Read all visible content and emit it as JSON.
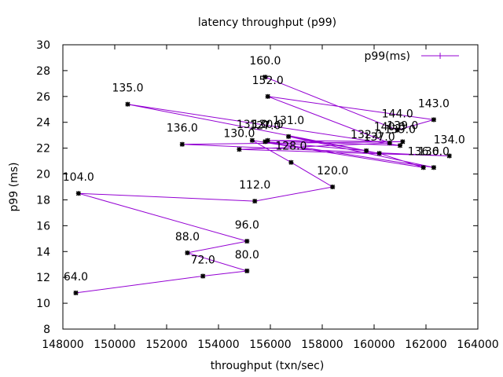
{
  "chart_data": {
    "type": "line",
    "title": "latency throughput (p99)",
    "xlabel": "throughput (txn/sec)",
    "ylabel": "p99 (ms)",
    "xlim": [
      148000,
      164000
    ],
    "ylim": [
      8,
      30
    ],
    "xticks": [
      148000,
      150000,
      152000,
      154000,
      156000,
      158000,
      160000,
      162000,
      164000
    ],
    "yticks": [
      8,
      10,
      12,
      14,
      16,
      18,
      20,
      22,
      24,
      26,
      28,
      30
    ],
    "grid": false,
    "legend_position": "top-right",
    "series": [
      {
        "name": "p99(ms)",
        "color": "#9400d3",
        "marker_color": "#000000",
        "points": [
          {
            "x": 148500,
            "y": 10.8,
            "label": "64.0"
          },
          {
            "x": 153400,
            "y": 12.1,
            "label": "72.0"
          },
          {
            "x": 155100,
            "y": 12.5,
            "label": "80.0"
          },
          {
            "x": 152800,
            "y": 13.9,
            "label": "88.0"
          },
          {
            "x": 155100,
            "y": 14.8,
            "label": "96.0"
          },
          {
            "x": 148600,
            "y": 18.5,
            "label": "104.0"
          },
          {
            "x": 155400,
            "y": 17.9,
            "label": "112.0"
          },
          {
            "x": 158400,
            "y": 19.0,
            "label": "120.0"
          },
          {
            "x": 156800,
            "y": 20.9,
            "label": "128.0"
          },
          {
            "x": 155300,
            "y": 22.6,
            "label": "133.0"
          },
          {
            "x": 161900,
            "y": 20.5,
            "label": "136.0"
          },
          {
            "x": 160200,
            "y": 21.6,
            "label": "137.0"
          },
          {
            "x": 156700,
            "y": 22.9,
            "label": "131.0"
          },
          {
            "x": 162300,
            "y": 20.5,
            "label": "136.0"
          },
          {
            "x": 155800,
            "y": 22.5,
            "label": "127.0"
          },
          {
            "x": 159700,
            "y": 21.8,
            "label": "132.0"
          },
          {
            "x": 150500,
            "y": 25.4,
            "label": "135.0"
          },
          {
            "x": 161000,
            "y": 22.2,
            "label": "139.0"
          },
          {
            "x": 155900,
            "y": 22.6,
            "label": "130.0"
          },
          {
            "x": 161100,
            "y": 22.5,
            "label": "139.0"
          },
          {
            "x": 152600,
            "y": 22.3,
            "label": "136.0"
          },
          {
            "x": 162900,
            "y": 21.4,
            "label": "134.0"
          },
          {
            "x": 154800,
            "y": 21.9,
            "label": "130.0"
          },
          {
            "x": 160600,
            "y": 22.4,
            "label": "140.0"
          },
          {
            "x": 155900,
            "y": 26.0,
            "label": "152.0"
          },
          {
            "x": 162300,
            "y": 24.2,
            "label": "143.0"
          },
          {
            "x": 160900,
            "y": 23.4,
            "label": "144.0"
          },
          {
            "x": 155800,
            "y": 27.5,
            "label": "160.0"
          }
        ]
      }
    ]
  }
}
